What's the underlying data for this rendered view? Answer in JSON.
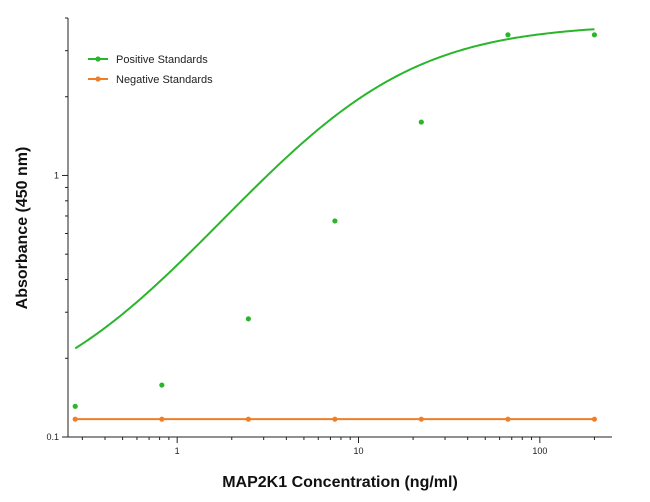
{
  "chart_data": {
    "type": "scatter",
    "title": "",
    "xlabel": "MAP2K1 Concentration (ng/ml)",
    "ylabel": "Absorbance (450 nm)",
    "x_scale": "log",
    "y_scale": "log",
    "xlim": [
      0.25,
      250
    ],
    "ylim": [
      0.1,
      4.0
    ],
    "x_tick_values": [
      1,
      10,
      100
    ],
    "x_tick_labels": [
      "1",
      "10",
      "100"
    ],
    "y_tick_values": [
      0.1,
      1
    ],
    "y_tick_labels": [
      "0.1",
      "1"
    ],
    "grid": false,
    "legend_position": "top-left",
    "series": [
      {
        "name": "Positive Standards",
        "color": "#2bb52b",
        "x": [
          0.274,
          0.823,
          2.47,
          7.41,
          22.2,
          66.7,
          200
        ],
        "y": [
          0.131,
          0.158,
          0.283,
          0.67,
          1.6,
          3.45,
          3.45
        ],
        "fit_curve": {
          "type": "4PL",
          "bottom": 0.12,
          "top": 3.8,
          "ec50": 10,
          "hill": 1.0
        }
      },
      {
        "name": "Negative Standards",
        "color": "#f07e26",
        "x": [
          0.274,
          0.823,
          2.47,
          7.41,
          22.2,
          66.7,
          200
        ],
        "y": [
          0.117,
          0.117,
          0.117,
          0.117,
          0.117,
          0.117,
          0.117
        ],
        "fit_curve": {
          "type": "flat",
          "value": 0.117
        }
      }
    ]
  }
}
